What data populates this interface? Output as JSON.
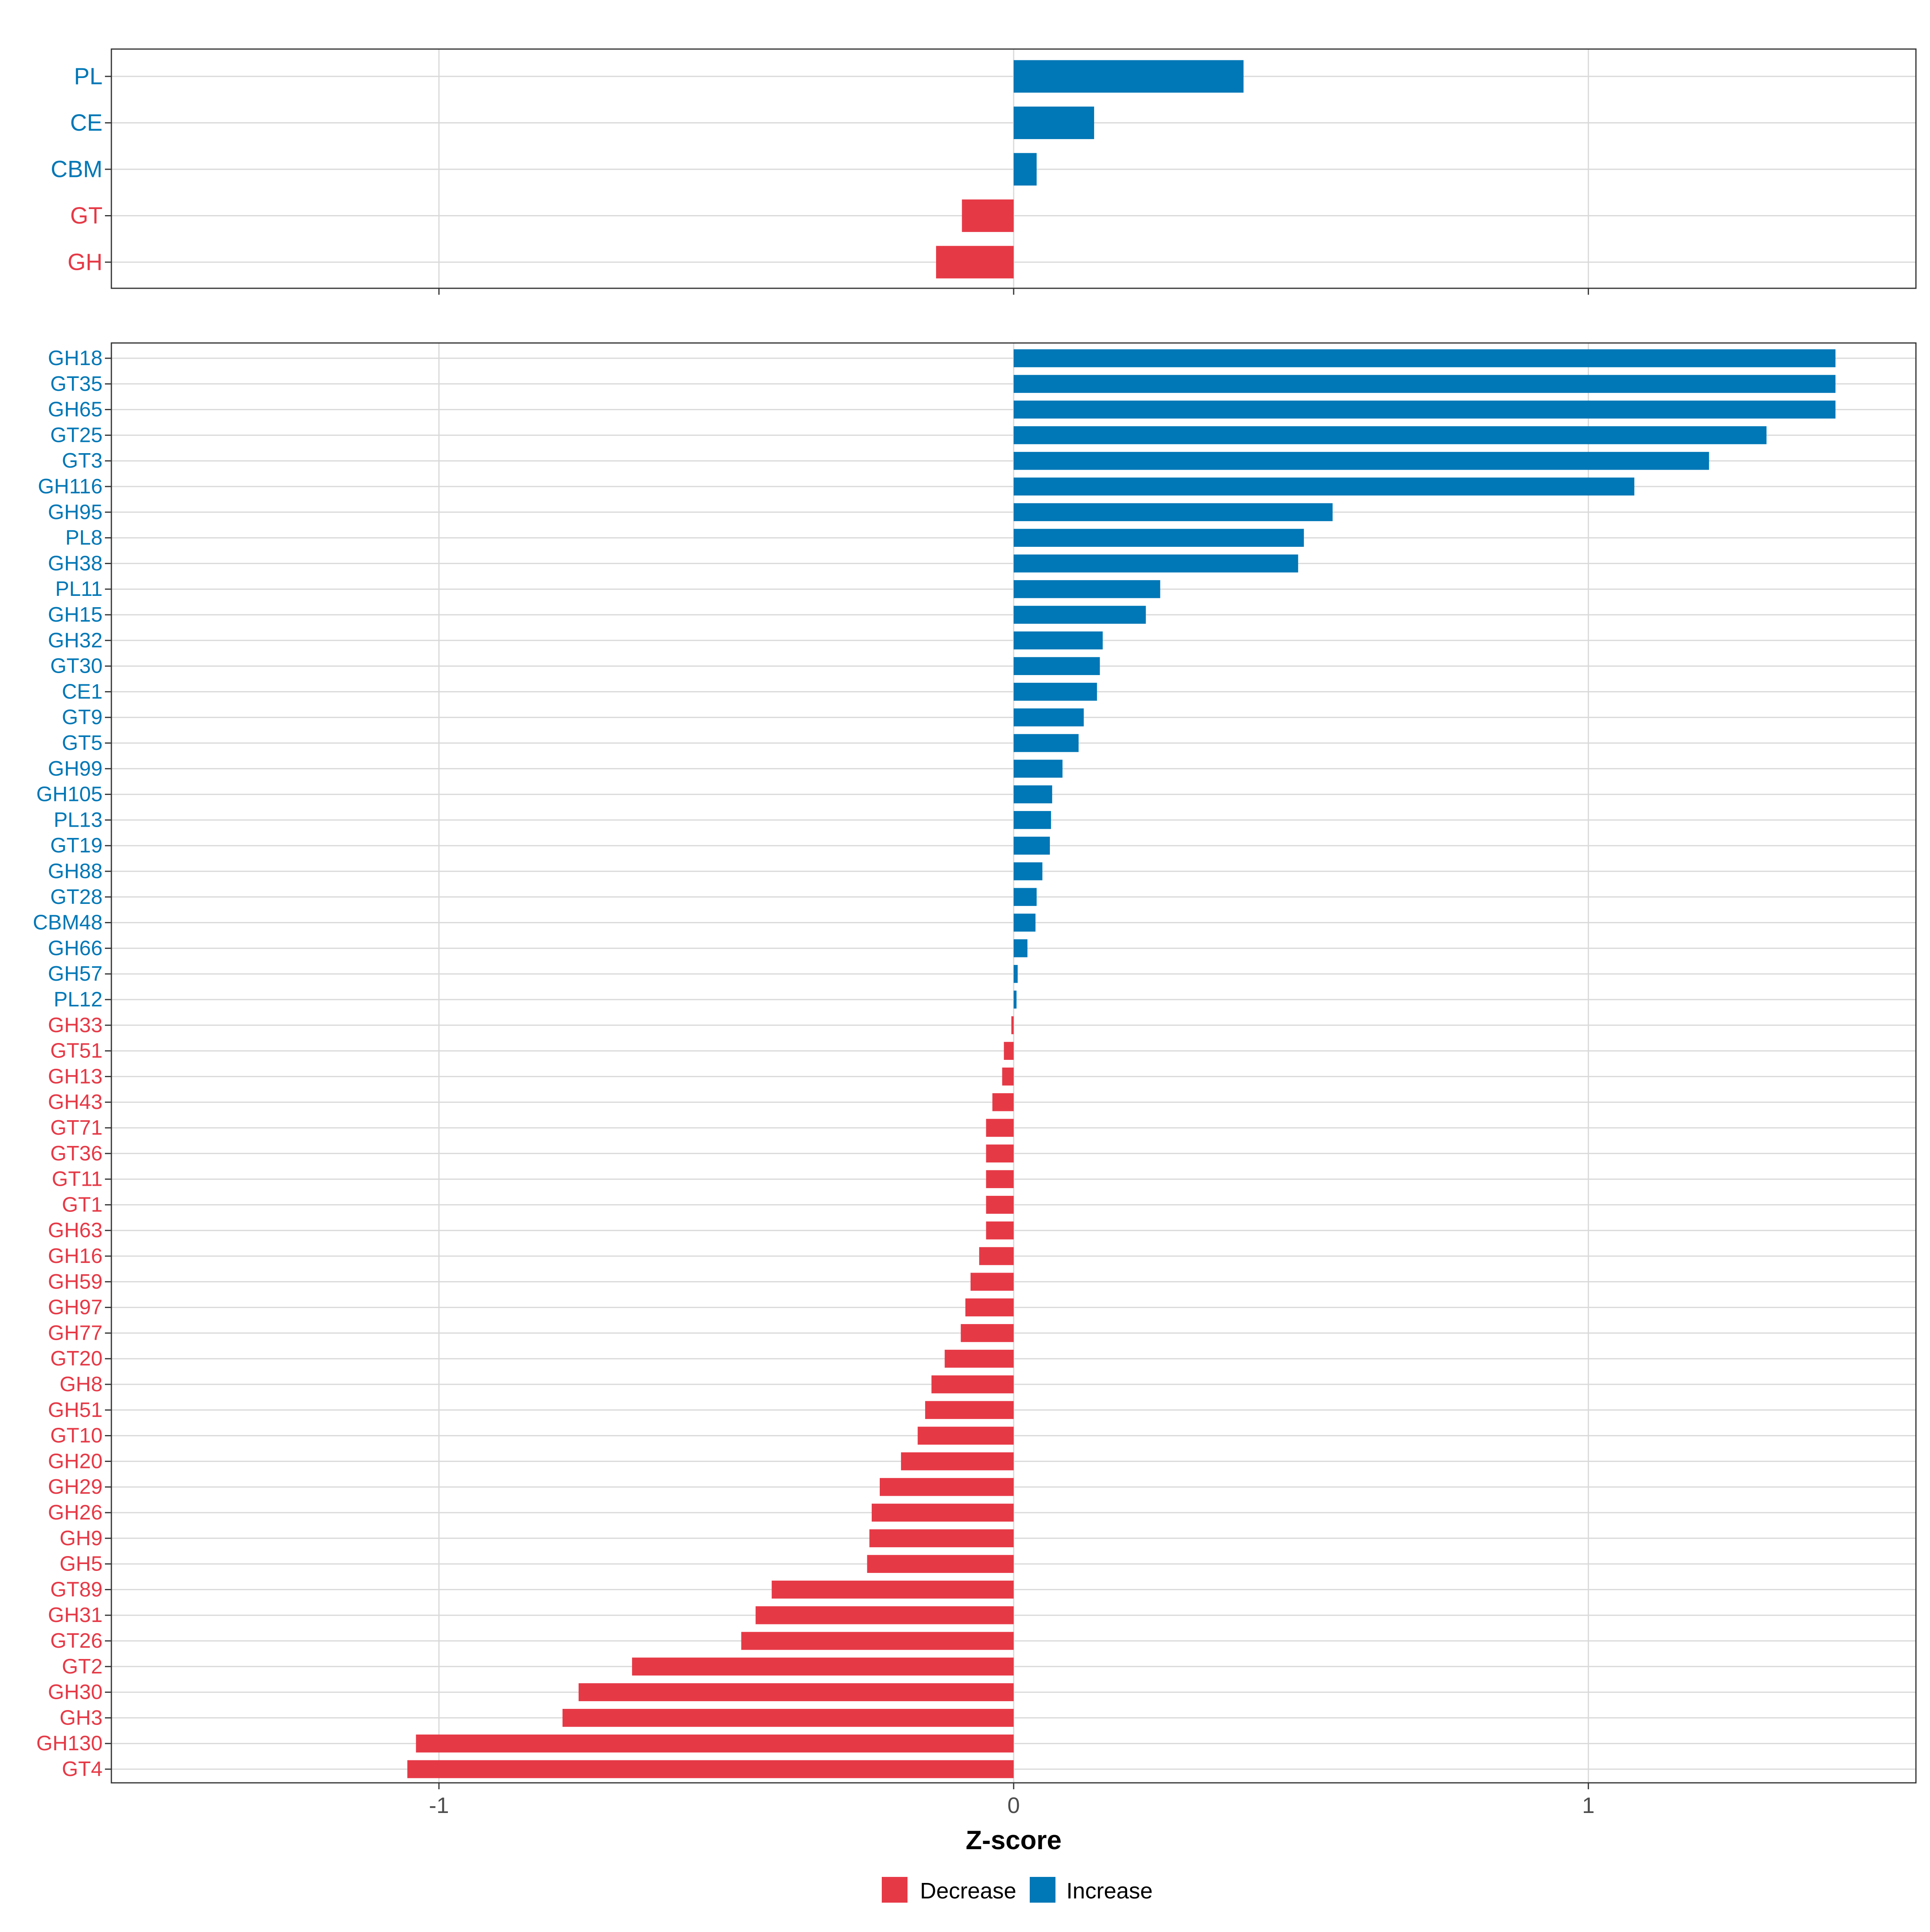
{
  "chart_data": [
    {
      "type": "bar",
      "orientation": "horizontal",
      "panel": "top",
      "categories": [
        "PL",
        "CE",
        "CBM",
        "GT",
        "GH"
      ],
      "values": [
        0.4,
        0.14,
        0.04,
        -0.09,
        -0.135
      ],
      "xlim": [
        -1.57,
        1.57
      ],
      "xticks": [
        -1,
        0,
        1
      ],
      "grid": true
    },
    {
      "type": "bar",
      "orientation": "horizontal",
      "panel": "bottom",
      "categories": [
        "GH18",
        "GT35",
        "GH65",
        "GT25",
        "GT3",
        "GH116",
        "GH95",
        "PL8",
        "GH38",
        "PL11",
        "GH15",
        "GH32",
        "GT30",
        "CE1",
        "GT9",
        "GT5",
        "GH99",
        "GH105",
        "PL13",
        "GT19",
        "GH88",
        "GT28",
        "CBM48",
        "GH66",
        "GH57",
        "PL12",
        "GH33",
        "GT51",
        "GH13",
        "GH43",
        "GT71",
        "GT36",
        "GT11",
        "GT1",
        "GH63",
        "GH16",
        "GH59",
        "GH97",
        "GH77",
        "GT20",
        "GH8",
        "GH51",
        "GT10",
        "GH20",
        "GH29",
        "GH26",
        "GH9",
        "GH5",
        "GT89",
        "GH31",
        "GT26",
        "GT2",
        "GH30",
        "GH3",
        "GH130",
        "GT4"
      ],
      "values": [
        1.43,
        1.43,
        1.43,
        1.31,
        1.21,
        1.08,
        0.555,
        0.505,
        0.495,
        0.255,
        0.23,
        0.155,
        0.15,
        0.145,
        0.122,
        0.113,
        0.085,
        0.067,
        0.065,
        0.063,
        0.05,
        0.04,
        0.038,
        0.024,
        0.007,
        0.005,
        -0.004,
        -0.017,
        -0.02,
        -0.037,
        -0.048,
        -0.048,
        -0.048,
        -0.048,
        -0.048,
        -0.06,
        -0.075,
        -0.084,
        -0.092,
        -0.12,
        -0.143,
        -0.154,
        -0.167,
        -0.196,
        -0.233,
        -0.247,
        -0.251,
        -0.255,
        -0.421,
        -0.449,
        -0.474,
        -0.664,
        -0.757,
        -0.785,
        -1.04,
        -1.055
      ],
      "xlim": [
        -1.57,
        1.57
      ],
      "xticks": [
        -1,
        0,
        1
      ],
      "xlabel": "Z-score",
      "grid": true
    }
  ],
  "axis": {
    "tick_labels": [
      "-1",
      "0",
      "1"
    ],
    "xlabel": "Z-score"
  },
  "legend": {
    "placement": "bottom",
    "items": [
      {
        "label": "Decrease",
        "color": "#E63946"
      },
      {
        "label": "Increase",
        "color": "#0077B6"
      }
    ]
  },
  "colors": {
    "increase": "#0077B6",
    "decrease": "#E63946",
    "grid": "#D9D9D9",
    "panel_border": "#333333",
    "tick_text": "#4D4D4D"
  }
}
